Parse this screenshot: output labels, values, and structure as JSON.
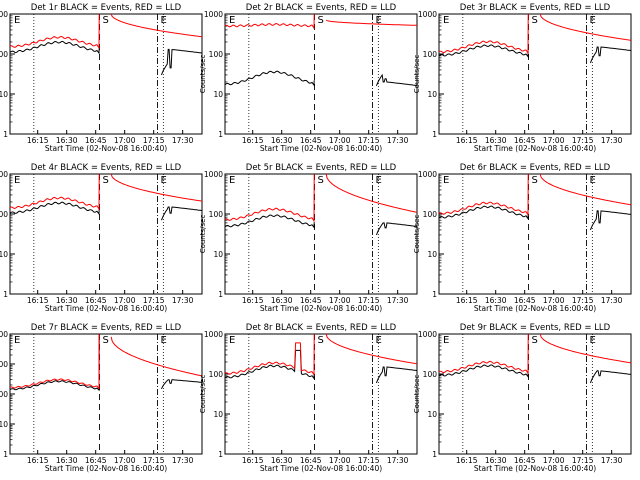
{
  "chart_data": [
    {
      "type": "line",
      "title": "Det 1r BLACK = Events, RED = LLD",
      "xlabel": "Start Time (02-Nov-08 16:00:40)",
      "ylabel": "Counts/sec",
      "yscale": "log",
      "ylim": [
        1,
        1000
      ],
      "y_ticks": [
        "1",
        "10",
        "100",
        "1000"
      ],
      "x_ticks": [
        "16:15",
        "16:30",
        "16:45",
        "17:00",
        "17:15",
        "17:30"
      ],
      "markers": [
        {
          "label": "E",
          "position": "start"
        },
        {
          "label": "S",
          "position": "16:47"
        },
        {
          "label": "E",
          "position": "17:17"
        }
      ],
      "series": [
        {
          "name": "BLACK = Events",
          "color": "#000000",
          "level": 110,
          "peak_ratio": 1.8,
          "post": [
            30,
            130,
            190
          ]
        },
        {
          "name": "RED = LLD",
          "color": "#ff0000",
          "level": 150,
          "peak_ratio": 1.75,
          "post": [
            1000,
            420,
            270
          ]
        }
      ]
    },
    {
      "type": "line",
      "title": "Det 2r BLACK = Events, RED = LLD",
      "xlabel": "Start Time (02-Nov-08 16:00:40)",
      "ylabel": "Counts/sec",
      "yscale": "log",
      "ylim": [
        1,
        1000
      ],
      "y_ticks": [
        "1",
        "10",
        "100",
        "1000"
      ],
      "x_ticks": [
        "16:15",
        "16:30",
        "16:45",
        "17:00",
        "17:15",
        "17:30"
      ],
      "markers": [
        {
          "label": "E",
          "position": "start"
        },
        {
          "label": "S",
          "position": "16:47"
        },
        {
          "label": "E",
          "position": "17:17"
        }
      ],
      "series": [
        {
          "name": "BLACK = Events",
          "color": "#000000",
          "level": 17,
          "peak_ratio": 2.1,
          "post": [
            16,
            20,
            24
          ]
        },
        {
          "name": "RED = LLD",
          "color": "#ff0000",
          "level": 500,
          "peak_ratio": 1.1,
          "post": [
            700,
            560,
            520
          ]
        }
      ]
    },
    {
      "type": "line",
      "title": "Det 3r BLACK = Events, RED = LLD",
      "xlabel": "Start Time (02-Nov-08 16:00:40)",
      "ylabel": "Counts/sec",
      "yscale": "log",
      "ylim": [
        1,
        1000
      ],
      "y_ticks": [
        "1",
        "10",
        "100",
        "1000"
      ],
      "x_ticks": [
        "16:15",
        "16:30",
        "16:45",
        "17:00",
        "17:15",
        "17:30"
      ],
      "markers": [
        {
          "label": "E",
          "position": "start"
        },
        {
          "label": "S",
          "position": "16:47"
        },
        {
          "label": "E",
          "position": "17:17"
        }
      ],
      "series": [
        {
          "name": "BLACK = Events",
          "color": "#000000",
          "level": 90,
          "peak_ratio": 1.8,
          "post": [
            60,
            150,
            140
          ]
        },
        {
          "name": "RED = LLD",
          "color": "#ff0000",
          "level": 110,
          "peak_ratio": 1.85,
          "post": [
            1000,
            320,
            220
          ]
        }
      ]
    },
    {
      "type": "line",
      "title": "Det 4r BLACK = Events, RED = LLD",
      "xlabel": "Start Time (02-Nov-08 16:00:40)",
      "ylabel": "Counts/sec",
      "yscale": "log",
      "ylim": [
        1,
        1000
      ],
      "y_ticks": [
        "1",
        "10",
        "100",
        "1000"
      ],
      "x_ticks": [
        "16:15",
        "16:30",
        "16:45",
        "17:00",
        "17:15",
        "17:30"
      ],
      "markers": [
        {
          "label": "E",
          "position": "start"
        },
        {
          "label": "S",
          "position": "16:47"
        },
        {
          "label": "E",
          "position": "17:17"
        }
      ],
      "series": [
        {
          "name": "BLACK = Events",
          "color": "#000000",
          "level": 105,
          "peak_ratio": 1.8,
          "post": [
            70,
            150,
            150
          ]
        },
        {
          "name": "RED = LLD",
          "color": "#ff0000",
          "level": 140,
          "peak_ratio": 1.8,
          "post": [
            1000,
            380,
            210
          ]
        }
      ]
    },
    {
      "type": "line",
      "title": "Det 5r BLACK = Events, RED = LLD",
      "xlabel": "Start Time (02-Nov-08 16:00:40)",
      "ylabel": "Counts/sec",
      "yscale": "log",
      "ylim": [
        1,
        1000
      ],
      "y_ticks": [
        "1",
        "10",
        "100",
        "1000"
      ],
      "x_ticks": [
        "16:15",
        "16:30",
        "16:45",
        "17:00",
        "17:15",
        "17:30"
      ],
      "markers": [
        {
          "label": "E",
          "position": "start"
        },
        {
          "label": "S",
          "position": "16:47"
        },
        {
          "label": "E",
          "position": "17:17"
        }
      ],
      "series": [
        {
          "name": "BLACK = Events",
          "color": "#000000",
          "level": 48,
          "peak_ratio": 1.9,
          "post": [
            30,
            60,
            60
          ]
        },
        {
          "name": "RED = LLD",
          "color": "#ff0000",
          "level": 70,
          "peak_ratio": 1.9,
          "post": [
            1000,
            220,
            110
          ]
        }
      ]
    },
    {
      "type": "line",
      "title": "Det 6r BLACK = Events, RED = LLD",
      "xlabel": "Start Time (02-Nov-08 16:00:40)",
      "ylabel": "Counts/sec",
      "yscale": "log",
      "ylim": [
        1,
        1000
      ],
      "y_ticks": [
        "1",
        "10",
        "100",
        "1000"
      ],
      "x_ticks": [
        "16:15",
        "16:30",
        "16:45",
        "17:00",
        "17:15",
        "17:30"
      ],
      "markers": [
        {
          "label": "E",
          "position": "start"
        },
        {
          "label": "S",
          "position": "16:47"
        },
        {
          "label": "E",
          "position": "17:17"
        }
      ],
      "series": [
        {
          "name": "BLACK = Events",
          "color": "#000000",
          "level": 80,
          "peak_ratio": 1.9,
          "post": [
            40,
            120,
            100
          ]
        },
        {
          "name": "RED = LLD",
          "color": "#ff0000",
          "level": 100,
          "peak_ratio": 1.9,
          "post": [
            1000,
            250,
            170
          ]
        }
      ]
    },
    {
      "type": "line",
      "title": "Det 7r BLACK = Events, RED = LLD",
      "xlabel": "Start Time (02-Nov-08 16:00:40)",
      "ylabel": "Counts/sec",
      "yscale": "log",
      "ylim": [
        1,
        10000
      ],
      "y_ticks": [
        "1",
        "10",
        "100",
        "1000",
        "10000"
      ],
      "x_ticks": [
        "16:15",
        "16:30",
        "16:45",
        "17:00",
        "17:15",
        "17:30"
      ],
      "markers": [
        {
          "label": "E",
          "position": "start"
        },
        {
          "label": "S",
          "position": "16:47"
        },
        {
          "label": "E",
          "position": "17:17"
        }
      ],
      "series": [
        {
          "name": "BLACK = Events",
          "color": "#000000",
          "level": 140,
          "peak_ratio": 1.9,
          "post": [
            150,
            300,
            250
          ]
        },
        {
          "name": "RED = LLD",
          "color": "#ff0000",
          "level": 160,
          "peak_ratio": 1.9,
          "post": [
            8000,
            900,
            400
          ]
        }
      ]
    },
    {
      "type": "line",
      "title": "Det 8r BLACK = Events, RED = LLD",
      "xlabel": "Start Time (02-Nov-08 16:00:40)",
      "ylabel": "Counts/sec",
      "yscale": "log",
      "ylim": [
        1,
        1000
      ],
      "y_ticks": [
        "1",
        "10",
        "100",
        "1000"
      ],
      "x_ticks": [
        "16:15",
        "16:30",
        "16:45",
        "17:00",
        "17:15",
        "17:30"
      ],
      "markers": [
        {
          "label": "E",
          "position": "start"
        },
        {
          "label": "S",
          "position": "16:47"
        },
        {
          "label": "E",
          "position": "17:17"
        }
      ],
      "series": [
        {
          "name": "BLACK = Events",
          "color": "#000000",
          "level": 80,
          "peak_ratio": 2.0,
          "post": [
            60,
            150,
            120
          ]
        },
        {
          "name": "RED = LLD",
          "color": "#ff0000",
          "level": 100,
          "peak_ratio": 1.9,
          "post": [
            1000,
            280,
            180
          ]
        }
      ],
      "spike": {
        "start": "16:37",
        "end": "16:40",
        "value": 600
      }
    },
    {
      "type": "line",
      "title": "Det 9r BLACK = Events, RED = LLD",
      "xlabel": "Start Time (02-Nov-08 16:00:40)",
      "ylabel": "Counts/sec",
      "yscale": "log",
      "ylim": [
        1,
        1000
      ],
      "y_ticks": [
        "1",
        "10",
        "100",
        "1000"
      ],
      "x_ticks": [
        "16:15",
        "16:30",
        "16:45",
        "17:00",
        "17:15",
        "17:30"
      ],
      "markers": [
        {
          "label": "E",
          "position": "start"
        },
        {
          "label": "S",
          "position": "16:47"
        },
        {
          "label": "E",
          "position": "17:17"
        }
      ],
      "series": [
        {
          "name": "BLACK = Events",
          "color": "#000000",
          "level": 90,
          "peak_ratio": 1.8,
          "post": [
            60,
            120,
            110
          ]
        },
        {
          "name": "RED = LLD",
          "color": "#ff0000",
          "level": 110,
          "peak_ratio": 1.8,
          "post": [
            1000,
            280,
            190
          ]
        }
      ]
    }
  ]
}
